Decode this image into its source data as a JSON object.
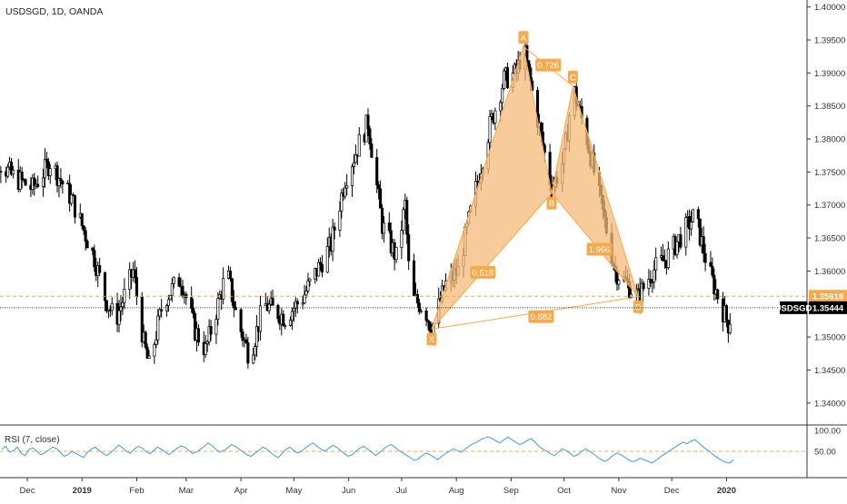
{
  "header": {
    "symbol_title": "USDSGD, 1D, OANDA"
  },
  "colors": {
    "up_candle": "#ffffff",
    "candle_outline": "#000000",
    "pattern_fill": "#f5b97a",
    "pattern_stroke": "#f7a94b",
    "label_bg": "#f7a94b",
    "label_text": "#ffffff",
    "last_price_bg": "#000000",
    "ref_line": "#f7a94b",
    "rsi_line": "#3e9ee8",
    "rsi_band": "#f7a94b",
    "axis_text": "#333333",
    "separator": "#333333"
  },
  "chart_data": [
    {
      "type": "candlestick",
      "title": "USDSGD, 1D, OANDA",
      "y_axis": {
        "position": "right",
        "ylim": [
          1.3375,
          1.4005
        ],
        "ticks": [
          "1.40000",
          "1.39500",
          "1.39000",
          "1.38500",
          "1.38000",
          "1.37500",
          "1.37000",
          "1.36500",
          "1.36000",
          "1.35500",
          "1.35000",
          "1.34500",
          "1.34000"
        ]
      },
      "x_axis": {
        "ticks": [
          "Dec",
          "2019",
          "Feb",
          "Mar",
          "Apr",
          "May",
          "Jun",
          "Jul",
          "Aug",
          "Sep",
          "Oct",
          "Nov",
          "Dec",
          "2020"
        ],
        "tick_dates": [
          "2018-12-01",
          "2019-01-01",
          "2019-02-01",
          "2019-03-01",
          "2019-04-01",
          "2019-05-01",
          "2019-06-01",
          "2019-07-01",
          "2019-08-01",
          "2019-09-01",
          "2019-10-01",
          "2019-11-01",
          "2019-12-01",
          "2020-01-01"
        ]
      },
      "price_trace": [
        [
          "2018-11-06",
          1.3795
        ],
        [
          "2018-11-22",
          1.3745
        ],
        [
          "2018-12-04",
          1.3725
        ],
        [
          "2018-12-14",
          1.3765
        ],
        [
          "2018-12-26",
          1.371
        ],
        [
          "2019-01-08",
          1.362
        ],
        [
          "2019-01-14",
          1.356
        ],
        [
          "2019-01-20",
          1.3525
        ],
        [
          "2019-01-30",
          1.36
        ],
        [
          "2019-02-05",
          1.349
        ],
        [
          "2019-02-08",
          1.3455
        ],
        [
          "2019-02-16",
          1.3555
        ],
        [
          "2019-02-26",
          1.359
        ],
        [
          "2019-03-06",
          1.351
        ],
        [
          "2019-03-12",
          1.348
        ],
        [
          "2019-03-24",
          1.36
        ],
        [
          "2019-03-30",
          1.3525
        ],
        [
          "2019-04-06",
          1.347
        ],
        [
          "2019-04-14",
          1.355
        ],
        [
          "2019-04-26",
          1.353
        ],
        [
          "2019-05-06",
          1.356
        ],
        [
          "2019-05-14",
          1.36
        ],
        [
          "2019-05-22",
          1.364
        ],
        [
          "2019-05-30",
          1.374
        ],
        [
          "2019-06-08",
          1.38
        ],
        [
          "2019-06-12",
          1.3825
        ],
        [
          "2019-06-20",
          1.367
        ],
        [
          "2019-06-28",
          1.362
        ],
        [
          "2019-07-03",
          1.37
        ],
        [
          "2019-07-06",
          1.356
        ],
        [
          "2019-07-14",
          1.3545
        ],
        [
          "2019-07-18",
          1.3512
        ],
        [
          "2019-07-26",
          1.358
        ],
        [
          "2019-08-02",
          1.36
        ],
        [
          "2019-08-10",
          1.37
        ],
        [
          "2019-08-20",
          1.382
        ],
        [
          "2019-08-28",
          1.389
        ],
        [
          "2019-09-04",
          1.39
        ],
        [
          "2019-09-08",
          1.394
        ],
        [
          "2019-09-16",
          1.383
        ],
        [
          "2019-09-24",
          1.3725
        ],
        [
          "2019-10-01",
          1.377
        ],
        [
          "2019-10-06",
          1.388
        ],
        [
          "2019-10-14",
          1.38
        ],
        [
          "2019-10-22",
          1.37
        ],
        [
          "2019-10-30",
          1.36
        ],
        [
          "2019-11-06",
          1.358
        ],
        [
          "2019-11-12",
          1.356
        ],
        [
          "2019-11-20",
          1.36
        ],
        [
          "2019-11-28",
          1.362
        ],
        [
          "2019-12-08",
          1.366
        ],
        [
          "2019-12-14",
          1.3685
        ],
        [
          "2019-12-22",
          1.36
        ],
        [
          "2019-12-30",
          1.354
        ],
        [
          "2020-01-02",
          1.352
        ],
        [
          "2020-01-05",
          1.3544
        ]
      ],
      "pattern": {
        "name_points": [
          {
            "label": "X",
            "date": "2019-07-18",
            "price": 1.3512
          },
          {
            "label": "A",
            "date": "2019-09-08",
            "price": 1.394
          },
          {
            "label": "B",
            "date": "2019-09-24",
            "price": 1.3718
          },
          {
            "label": "C",
            "date": "2019-10-06",
            "price": 1.388
          },
          {
            "label": "D",
            "date": "2019-11-12",
            "price": 1.3561
          }
        ],
        "ratios": [
          {
            "label": "0.518",
            "date": "2019-08-16",
            "price": 1.3598
          },
          {
            "label": "0.726",
            "date": "2019-09-22",
            "price": 1.3912
          },
          {
            "label": "1.966",
            "date": "2019-10-21",
            "price": 1.3633
          },
          {
            "label": "0.882",
            "date": "2019-09-18",
            "price": 1.3531
          }
        ]
      },
      "reference_line": {
        "label": "1.35618",
        "value": 1.35618
      },
      "last_price": {
        "label": "USDSGD",
        "value_label": "1.35444",
        "value": 1.35444
      }
    },
    {
      "type": "line",
      "title": "RSI (7, close)",
      "y_axis": {
        "ticks": [
          "100.00",
          "50.00"
        ],
        "ylim": [
          0,
          100
        ]
      },
      "reference_line": {
        "value": 50
      },
      "series": [
        {
          "values": [
            55,
            62,
            48,
            52,
            60,
            45,
            40,
            55,
            58,
            50,
            42,
            46,
            53,
            60,
            57,
            48,
            38,
            42,
            50,
            45,
            40,
            35,
            48,
            55,
            60,
            52,
            45,
            40,
            47,
            55,
            65,
            58,
            50,
            45,
            55,
            62,
            58,
            50,
            44,
            52,
            60,
            55,
            48,
            42,
            50,
            57,
            63,
            60,
            52,
            45,
            48,
            55,
            62,
            70,
            64,
            55,
            48,
            52,
            58,
            66,
            62,
            55,
            48,
            42,
            38,
            45,
            52,
            60,
            56,
            48,
            40,
            35,
            45,
            55,
            60,
            52,
            46,
            50,
            58,
            65,
            70,
            62,
            55,
            50,
            58,
            64,
            60,
            52,
            45,
            38,
            42,
            50,
            58,
            62,
            55,
            48,
            40,
            46,
            55,
            62,
            66,
            60,
            52,
            46,
            40,
            35,
            28,
            32,
            40,
            46,
            42,
            36,
            30,
            38,
            45,
            50,
            56,
            52,
            48,
            55,
            62,
            68,
            72,
            78,
            82,
            85,
            80,
            75,
            70,
            78,
            84,
            78,
            72,
            66,
            70,
            76,
            80,
            72,
            62,
            55,
            50,
            44,
            40,
            48,
            56,
            52,
            45,
            38,
            42,
            50,
            56,
            50,
            44,
            36,
            30,
            26,
            32,
            40,
            46,
            42,
            36,
            30,
            25,
            28,
            34,
            30,
            26,
            22,
            28,
            35,
            42,
            48,
            54,
            60,
            66,
            72,
            68,
            74,
            78,
            70,
            62,
            55,
            48,
            40,
            34,
            28,
            24,
            22,
            30
          ]
        }
      ]
    }
  ]
}
